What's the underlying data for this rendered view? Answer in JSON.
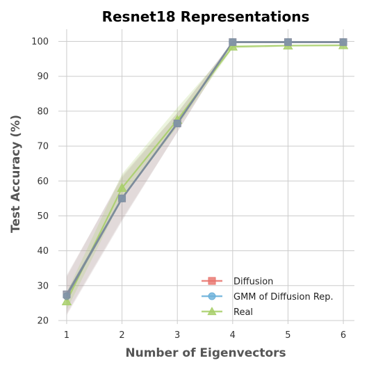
{
  "chart_data": {
    "type": "line",
    "title": "Resnet18 Representations",
    "xlabel": "Number of Eigenvectors",
    "ylabel": "Test Accuracy (%)",
    "x": [
      1,
      2,
      3,
      4,
      5,
      6
    ],
    "xticks": [
      "1",
      "2",
      "3",
      "4",
      "5",
      "6"
    ],
    "yticks": [
      "20",
      "30",
      "40",
      "50",
      "60",
      "70",
      "80",
      "90",
      "100"
    ],
    "xlim": [
      0.85,
      6.2
    ],
    "ylim": [
      19,
      103.5
    ],
    "grid": true,
    "legend_position": "bottom-right",
    "series": [
      {
        "name": "Diffusion",
        "values": [
          27.5,
          55.0,
          76.5,
          99.8,
          99.8,
          99.8
        ],
        "lower": [
          22.0,
          49.0,
          74.0,
          99.5,
          99.5,
          99.5
        ],
        "upper": [
          33.0,
          61.0,
          79.5,
          100.0,
          100.0,
          100.0
        ],
        "color": "#e8736c",
        "marker": "square"
      },
      {
        "name": "GMM of Diffusion Rep.",
        "values": [
          27.0,
          55.0,
          76.5,
          99.8,
          99.8,
          99.8
        ],
        "lower": [
          21.5,
          48.5,
          74.0,
          99.5,
          99.5,
          99.5
        ],
        "upper": [
          32.5,
          61.5,
          79.5,
          100.0,
          100.0,
          100.0
        ],
        "color": "#6ab0d9",
        "marker": "circle"
      },
      {
        "name": "Real",
        "values": [
          25.5,
          58.0,
          77.5,
          98.5,
          98.8,
          98.9
        ],
        "lower": [
          23.0,
          55.0,
          75.5,
          98.0,
          98.5,
          98.5
        ],
        "upper": [
          28.0,
          62.0,
          81.0,
          99.0,
          99.0,
          99.0
        ],
        "color": "#a8cf6a",
        "marker": "triangle"
      }
    ],
    "combined_line_color": "#7a8a9a",
    "band_color": "#a89090"
  }
}
